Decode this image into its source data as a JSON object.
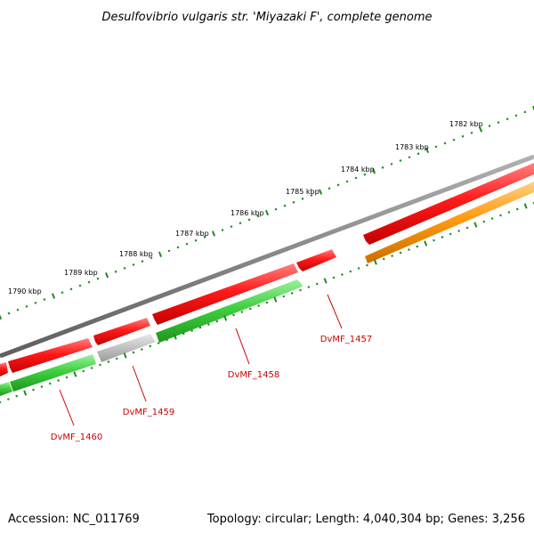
{
  "title": "Desulfovibrio vulgaris str. 'Miyazaki F', complete genome",
  "footer": {
    "accession": "Accession: NC_011769",
    "summary": "Topology: circular; Length: 4,040,304 bp; Genes: 3,256"
  },
  "ruler": {
    "tick_color": "#1f8a1f",
    "labels": [
      "1782 kbp",
      "1783 kbp",
      "1784 kbp",
      "1785 kbp",
      "1786 kbp",
      "1787 kbp",
      "1788 kbp",
      "1789 kbp",
      "1790 kbp"
    ]
  },
  "colors": {
    "backbone": "#7a7a7a",
    "forward_gene": "#ee1111",
    "reverse_gene": "#33cc33",
    "pseudo_gene": "#bbbbbb",
    "rna_gene": "#ff9900",
    "label": "#cc0000"
  },
  "gene_labels": [
    "DvMF_1457",
    "DvMF_1458",
    "DvMF_1459",
    "DvMF_1460"
  ]
}
